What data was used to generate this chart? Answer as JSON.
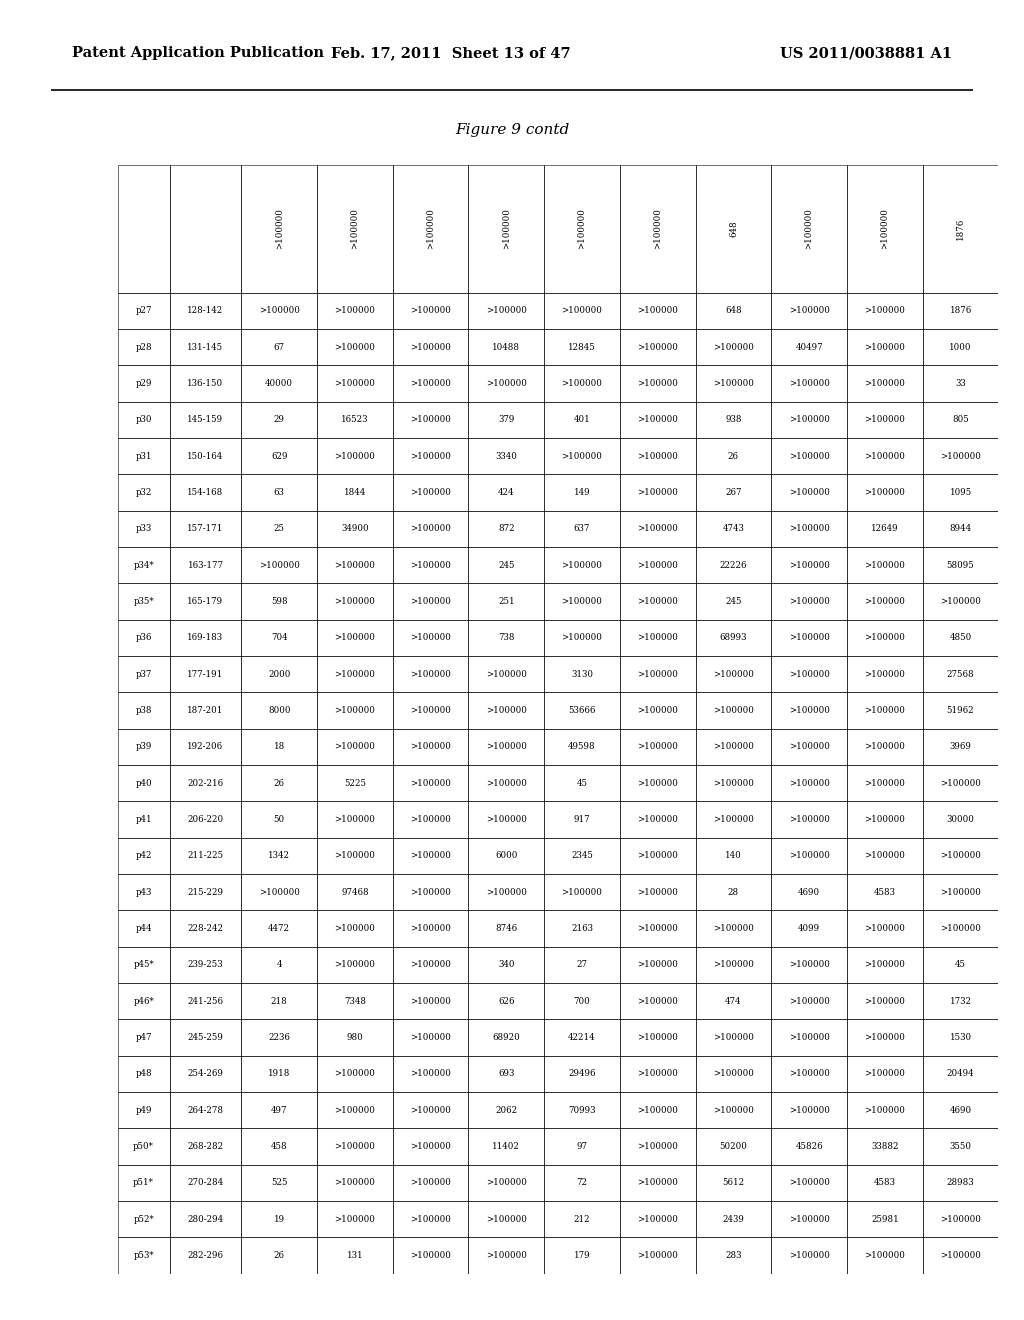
{
  "header_left": "Patent Application Publication",
  "header_center": "Feb. 17, 2011  Sheet 13 of 47",
  "header_right": "US 2011/0038881 A1",
  "figure_title": "Figure 9 contd",
  "header_row": [
    "",
    "",
    ">100000",
    ">100000",
    ">100000",
    ">100000",
    ">100000",
    ">100000",
    "648",
    ">100000",
    ">100000",
    "1876"
  ],
  "rows": [
    [
      "p27",
      "128-142",
      ">100000",
      ">100000",
      ">100000",
      ">100000",
      ">100000",
      ">100000",
      "648",
      ">100000",
      ">100000",
      "1876"
    ],
    [
      "p28",
      "131-145",
      "67",
      ">100000",
      ">100000",
      "10488",
      "12845",
      ">100000",
      ">100000",
      "40497",
      ">100000",
      "1000"
    ],
    [
      "p29",
      "136-150",
      "40000",
      ">100000",
      ">100000",
      ">100000",
      ">100000",
      ">100000",
      ">100000",
      ">100000",
      ">100000",
      "33"
    ],
    [
      "p30",
      "145-159",
      "29",
      "16523",
      ">100000",
      "379",
      "401",
      ">100000",
      "938",
      ">100000",
      ">100000",
      "805"
    ],
    [
      "p31",
      "150-164",
      "629",
      ">100000",
      ">100000",
      "3340",
      ">100000",
      ">100000",
      "26",
      ">100000",
      ">100000",
      ">100000"
    ],
    [
      "p32",
      "154-168",
      "63",
      "1844",
      ">100000",
      "424",
      "149",
      ">100000",
      "267",
      ">100000",
      ">100000",
      "1095"
    ],
    [
      "p33",
      "157-171",
      "25",
      "34900",
      ">100000",
      "872",
      "637",
      ">100000",
      "4743",
      ">100000",
      "12649",
      "8944"
    ],
    [
      "p34*",
      "163-177",
      ">100000",
      ">100000",
      ">100000",
      "245",
      ">100000",
      ">100000",
      "22226",
      ">100000",
      ">100000",
      "58095"
    ],
    [
      "p35*",
      "165-179",
      "598",
      ">100000",
      ">100000",
      "251",
      ">100000",
      ">100000",
      "245",
      ">100000",
      ">100000",
      ">100000"
    ],
    [
      "p36",
      "169-183",
      "704",
      ">100000",
      ">100000",
      "738",
      ">100000",
      ">100000",
      "68993",
      ">100000",
      ">100000",
      "4850"
    ],
    [
      "p37",
      "177-191",
      "2000",
      ">100000",
      ">100000",
      ">100000",
      "3130",
      ">100000",
      ">100000",
      ">100000",
      ">100000",
      "27568"
    ],
    [
      "p38",
      "187-201",
      "8000",
      ">100000",
      ">100000",
      ">100000",
      "53666",
      ">100000",
      ">100000",
      ">100000",
      ">100000",
      "51962"
    ],
    [
      "p39",
      "192-206",
      "18",
      ">100000",
      ">100000",
      ">100000",
      "49598",
      ">100000",
      ">100000",
      ">100000",
      ">100000",
      "3969"
    ],
    [
      "p40",
      "202-216",
      "26",
      "5225",
      ">100000",
      ">100000",
      "45",
      ">100000",
      ">100000",
      ">100000",
      ">100000",
      ">100000"
    ],
    [
      "p41",
      "206-220",
      "50",
      ">100000",
      ">100000",
      ">100000",
      "917",
      ">100000",
      ">100000",
      ">100000",
      ">100000",
      "30000"
    ],
    [
      "p42",
      "211-225",
      "1342",
      ">100000",
      ">100000",
      "6000",
      "2345",
      ">100000",
      "140",
      ">100000",
      ">100000",
      ">100000"
    ],
    [
      "p43",
      "215-229",
      ">100000",
      "97468",
      ">100000",
      ">100000",
      ">100000",
      ">100000",
      "28",
      "4690",
      "4583",
      ">100000"
    ],
    [
      "p44",
      "228-242",
      "4472",
      ">100000",
      ">100000",
      "8746",
      "2163",
      ">100000",
      ">100000",
      "4099",
      ">100000",
      ">100000"
    ],
    [
      "p45*",
      "239-253",
      "4",
      ">100000",
      ">100000",
      "340",
      "27",
      ">100000",
      ">100000",
      ">100000",
      ">100000",
      "45"
    ],
    [
      "p46*",
      "241-256",
      "218",
      "7348",
      ">100000",
      "626",
      "700",
      ">100000",
      "474",
      ">100000",
      ">100000",
      "1732"
    ],
    [
      "p47",
      "245-259",
      "2236",
      "980",
      ">100000",
      "68920",
      "42214",
      ">100000",
      ">100000",
      ">100000",
      ">100000",
      "1530"
    ],
    [
      "p48",
      "254-269",
      "1918",
      ">100000",
      ">100000",
      "693",
      "29496",
      ">100000",
      ">100000",
      ">100000",
      ">100000",
      "20494"
    ],
    [
      "p49",
      "264-278",
      "497",
      ">100000",
      ">100000",
      "2062",
      "70993",
      ">100000",
      ">100000",
      ">100000",
      ">100000",
      "4690"
    ],
    [
      "p50*",
      "268-282",
      "458",
      ">100000",
      ">100000",
      "11402",
      "97",
      ">100000",
      "50200",
      "45826",
      "33882",
      "3550"
    ],
    [
      "p51*",
      "270-284",
      "525",
      ">100000",
      ">100000",
      ">100000",
      "72",
      ">100000",
      "5612",
      ">100000",
      "4583",
      "28983"
    ],
    [
      "p52*",
      "280-294",
      "19",
      ">100000",
      ">100000",
      ">100000",
      "212",
      ">100000",
      "2439",
      ">100000",
      "25981",
      ">100000"
    ],
    [
      "p53*",
      "282-296",
      "26",
      "131",
      ">100000",
      ">100000",
      "179",
      ">100000",
      "283",
      ">100000",
      ">100000",
      ">100000"
    ]
  ]
}
